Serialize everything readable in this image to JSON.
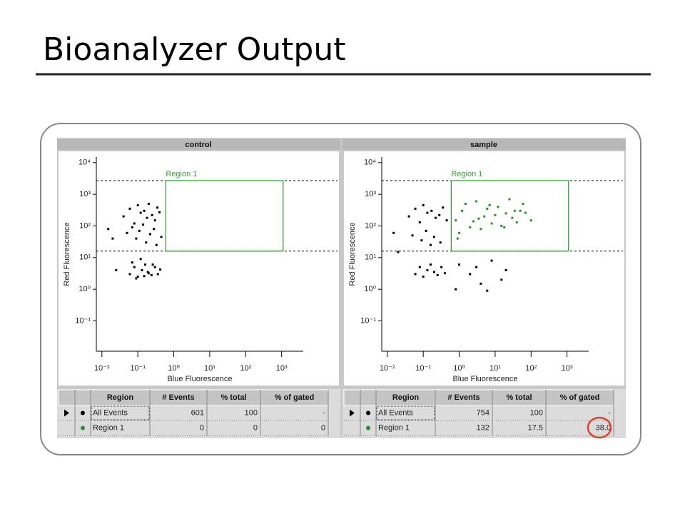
{
  "slide": {
    "title": "Bioanalyzer Output"
  },
  "chart_data": [
    {
      "type": "scatter",
      "title": "control",
      "xlabel": "Blue Fluorescence",
      "ylabel": "Red Fluorescence",
      "xlog": true,
      "ylog": true,
      "xlim": [
        0.007,
        4000
      ],
      "ylim": [
        0.011,
        15000
      ],
      "xticks": [
        {
          "value": 0.01,
          "label": "10⁻²"
        },
        {
          "value": 0.1,
          "label": "10⁻¹"
        },
        {
          "value": 1,
          "label": "10⁰"
        },
        {
          "value": 10,
          "label": "10¹"
        },
        {
          "value": 100,
          "label": "10²"
        },
        {
          "value": 1000,
          "label": "10³"
        }
      ],
      "yticks": [
        {
          "value": 0.1,
          "label": "10⁻¹"
        },
        {
          "value": 1,
          "label": "10⁰"
        },
        {
          "value": 10,
          "label": "10¹"
        },
        {
          "value": 100,
          "label": "10²"
        },
        {
          "value": 1000,
          "label": "10³"
        },
        {
          "value": 10000,
          "label": "10⁴"
        }
      ],
      "region": {
        "label": "Region 1",
        "color": "#3a9a3a",
        "x": [
          0.6,
          1100
        ],
        "y": [
          16,
          2700
        ]
      },
      "series": [
        {
          "color": "#000000",
          "x": [
            0.04,
            0.06,
            0.08,
            0.1,
            0.12,
            0.15,
            0.18,
            0.2,
            0.25,
            0.3,
            0.35,
            0.4,
            0.05,
            0.07,
            0.09,
            0.11,
            0.14,
            0.17,
            0.22,
            0.28,
            0.33,
            0.45,
            0.06,
            0.08,
            0.1,
            0.13,
            0.16,
            0.19,
            0.24,
            0.3,
            0.36,
            0.42,
            0.07,
            0.09,
            0.12,
            0.15,
            0.2,
            0.26,
            0.015,
            0.02,
            0.025
          ],
          "values": [
            200,
            350,
            120,
            450,
            260,
            300,
            180,
            500,
            220,
            150,
            380,
            270,
            60,
            90,
            40,
            70,
            110,
            30,
            55,
            80,
            25,
            45,
            3,
            5,
            2.5,
            4,
            6,
            3.5,
            2.8,
            5,
            3,
            4.2,
            7,
            2.2,
            9,
            2.6,
            3.2,
            6,
            80,
            40,
            4
          ]
        }
      ]
    },
    {
      "type": "scatter",
      "title": "sample",
      "xlabel": "Blue Fluorescence",
      "ylabel": "Red Fluorescence",
      "xlog": true,
      "ylog": true,
      "xlim": [
        0.007,
        4000
      ],
      "ylim": [
        0.011,
        15000
      ],
      "xticks": [
        {
          "value": 0.01,
          "label": "10⁻²"
        },
        {
          "value": 0.1,
          "label": "10⁻¹"
        },
        {
          "value": 1,
          "label": "10⁰"
        },
        {
          "value": 10,
          "label": "10¹"
        },
        {
          "value": 100,
          "label": "10²"
        },
        {
          "value": 1000,
          "label": "10³"
        }
      ],
      "yticks": [
        {
          "value": 0.1,
          "label": "10⁻¹"
        },
        {
          "value": 1,
          "label": "10⁰"
        },
        {
          "value": 10,
          "label": "10¹"
        },
        {
          "value": 100,
          "label": "10²"
        },
        {
          "value": 1000,
          "label": "10³"
        },
        {
          "value": 10000,
          "label": "10⁴"
        }
      ],
      "region": {
        "label": "Region 1",
        "color": "#3a9a3a",
        "x": [
          0.6,
          1100
        ],
        "y": [
          16,
          2700
        ]
      },
      "series": [
        {
          "color": "#000000",
          "x": [
            0.04,
            0.06,
            0.08,
            0.1,
            0.13,
            0.17,
            0.22,
            0.28,
            0.35,
            0.45,
            0.05,
            0.09,
            0.12,
            0.16,
            0.2,
            0.3,
            0.06,
            0.08,
            0.1,
            0.13,
            0.16,
            0.2,
            0.25,
            0.32,
            0.4,
            1,
            2,
            4,
            8,
            15,
            0.8,
            3,
            6,
            20,
            0.015,
            0.02
          ],
          "values": [
            200,
            350,
            130,
            450,
            260,
            300,
            180,
            220,
            380,
            150,
            50,
            35,
            70,
            25,
            45,
            30,
            3,
            5,
            2.5,
            4,
            6,
            3.5,
            2.8,
            5,
            3.2,
            6,
            3,
            1.5,
            8,
            2,
            1,
            5,
            0.9,
            4,
            60,
            15
          ]
        },
        {
          "color": "#2e8b2e",
          "x": [
            0.8,
            1.2,
            2,
            3,
            5,
            8,
            12,
            20,
            30,
            50,
            1,
            1.5,
            2.5,
            4,
            6,
            10,
            15,
            25,
            40,
            70,
            0.9,
            3.5,
            7,
            18,
            35,
            100,
            60
          ],
          "values": [
            150,
            300,
            90,
            600,
            200,
            120,
            400,
            250,
            180,
            300,
            60,
            500,
            140,
            80,
            350,
            220,
            100,
            700,
            130,
            260,
            40,
            170,
            450,
            90,
            300,
            150,
            500
          ]
        }
      ]
    }
  ],
  "tables": [
    {
      "columns": [
        "Region",
        "# Events",
        "% total",
        "% of gated"
      ],
      "rows": [
        [
          "All Events",
          "601",
          "100",
          "-"
        ],
        [
          "Region 1",
          "0",
          "0",
          "0"
        ]
      ]
    },
    {
      "columns": [
        "Region",
        "# Events",
        "% total",
        "% of gated"
      ],
      "rows": [
        [
          "All Events",
          "754",
          "100",
          "-"
        ],
        [
          "Region 1",
          "132",
          "17.5",
          "38.0"
        ]
      ]
    }
  ]
}
